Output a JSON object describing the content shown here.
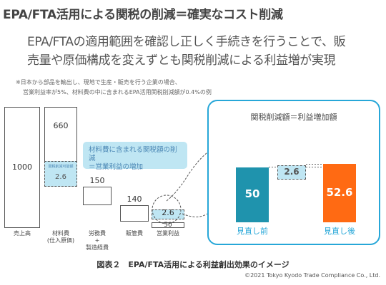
{
  "title": "EPA/FTA活用による関税の削減＝確実なコスト削減",
  "subtitle_line1": "EPA/FTAの適用範囲を確認し正しく手続きを行うことで、販",
  "subtitle_line2": "売量や原価構成を変えずとも関税削減による利益増が実現",
  "note_line1": "※日本から部品を輸出し、現地で生産・販売を行う企業の場合、",
  "note_line2": "営業利益率が5%、材料費の中に含まれるEPA活用関税削減額が0.4%の例",
  "colors": {
    "teal": "#1f93ad",
    "orange": "#ff6a13",
    "lightblue": "#bfe6f3",
    "frame": "#27a7d8",
    "stroke": "#555555"
  },
  "chart_data": [
    {
      "type": "bar",
      "variant": "waterfall",
      "categories": [
        "売上高",
        "材料費\n(仕入原価)",
        "労務費\n+\n製造経費",
        "販管費",
        "営業利益"
      ],
      "values": [
        1000,
        660,
        150,
        140,
        50
      ],
      "value_labels": [
        "1000",
        "660",
        "150",
        "140",
        "50"
      ],
      "highlight": {
        "category": "材料費\n(仕入原価)",
        "value": 2.6,
        "label": "2.6",
        "inner_label": "関税削減可能額"
      },
      "transfer": {
        "category": "営業利益",
        "value": 2.6,
        "label": "2.6"
      },
      "callout_line1": "材料費に含まれる関税額の削減",
      "callout_line2": "＝営業利益の増加"
    },
    {
      "type": "bar",
      "title": "関税削減額＝利益増加額",
      "categories": [
        "見直し前",
        "見直し後"
      ],
      "values": [
        50,
        52.6
      ],
      "value_labels": [
        "50",
        "52.6"
      ],
      "increase": {
        "value": 2.6,
        "label": "2.6"
      }
    }
  ],
  "caption": "図表２　EPA/FTA活用による利益創出効果のイメージ",
  "copyright": "©2021 Tokyo Kyodo Trade Compliance Co., Ltd."
}
